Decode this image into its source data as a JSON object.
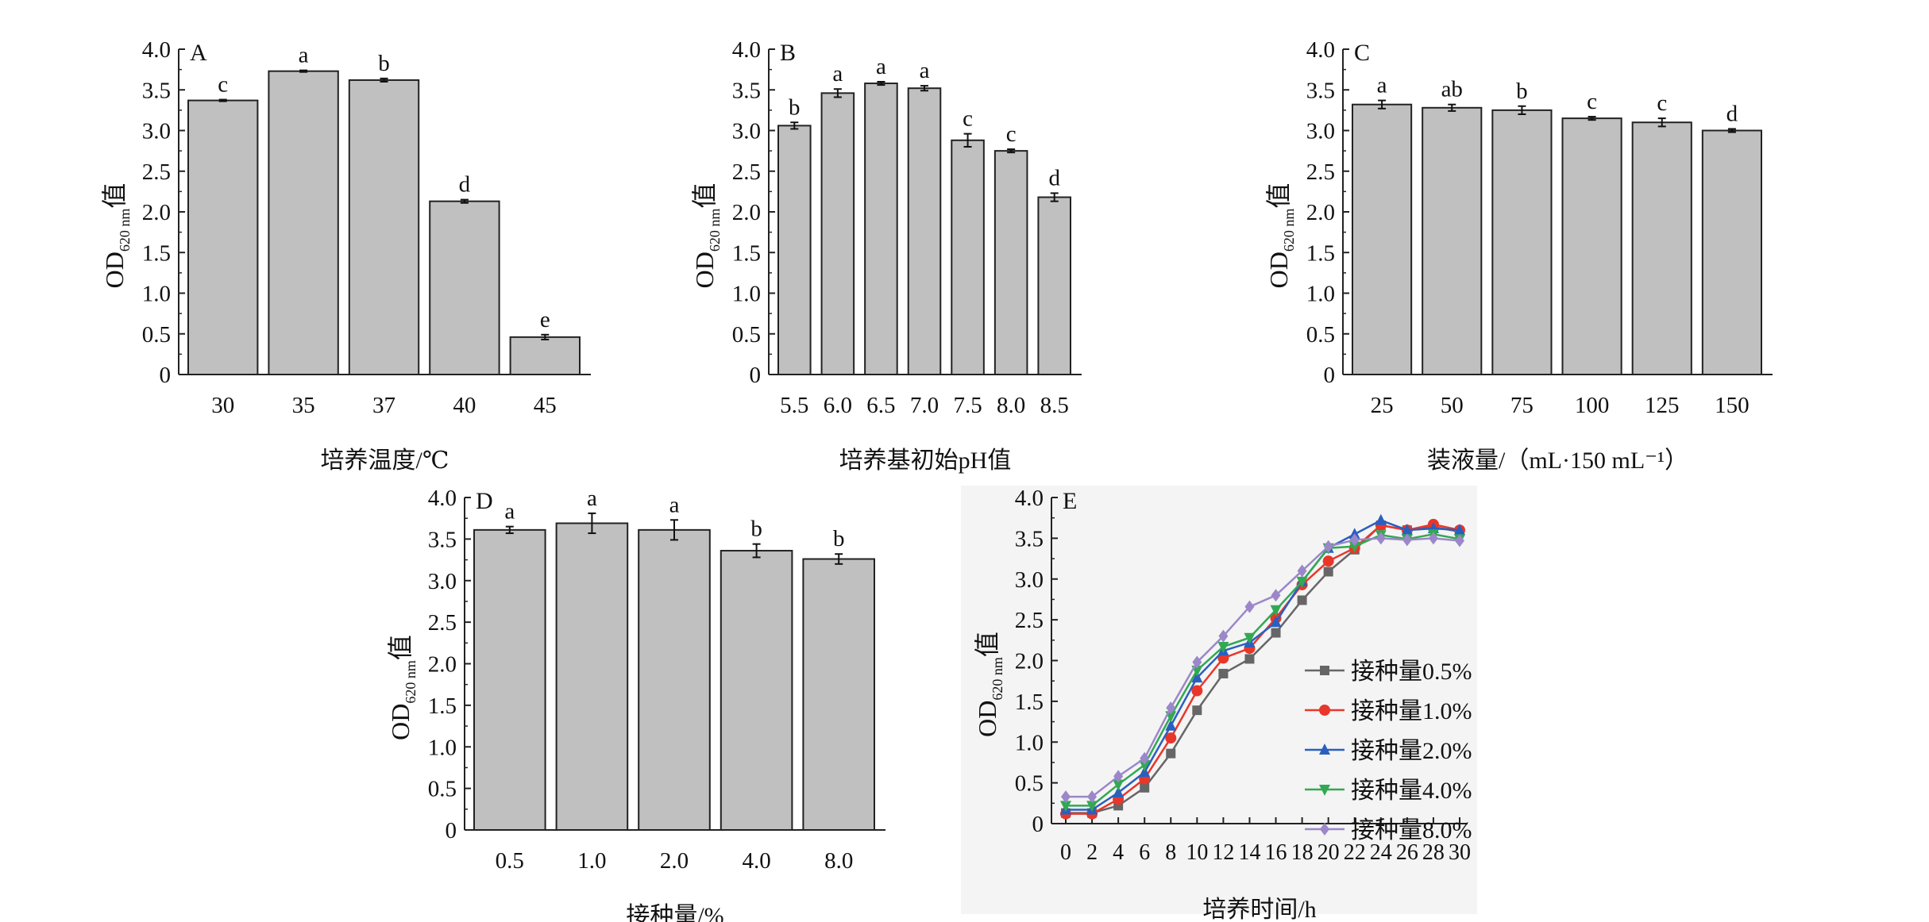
{
  "chart_data": [
    {
      "type": "bar",
      "panel": "A",
      "categories": [
        "30",
        "35",
        "37",
        "40",
        "45"
      ],
      "values": [
        3.37,
        3.73,
        3.62,
        2.13,
        0.46
      ],
      "errors": [
        0.01,
        0.01,
        0.02,
        0.02,
        0.03
      ],
      "letters": [
        "c",
        "a",
        "b",
        "d",
        "e"
      ],
      "xlabel": "培养温度/℃",
      "ylabel_main": "OD",
      "ylabel_sub": "620 nm",
      "ylabel_suffix": "值",
      "ylim": [
        0,
        4.0
      ],
      "yticks": [
        "0",
        "0.5",
        "1.0",
        "1.5",
        "2.0",
        "2.5",
        "3.0",
        "3.5",
        "4.0"
      ],
      "bar_color": "#c0c0c0"
    },
    {
      "type": "bar",
      "panel": "B",
      "categories": [
        "5.5",
        "6.0",
        "6.5",
        "7.0",
        "7.5",
        "8.0",
        "8.5"
      ],
      "values": [
        3.06,
        3.46,
        3.58,
        3.52,
        2.88,
        2.75,
        2.18
      ],
      "errors": [
        0.04,
        0.05,
        0.02,
        0.03,
        0.08,
        0.02,
        0.05
      ],
      "letters": [
        "b",
        "a",
        "a",
        "a",
        "c",
        "c",
        "d"
      ],
      "xlabel": "培养基初始pH值",
      "ylabel_main": "OD",
      "ylabel_sub": "620 nm",
      "ylabel_suffix": "值",
      "ylim": [
        0,
        4.0
      ],
      "yticks": [
        "0",
        "0.5",
        "1.0",
        "1.5",
        "2.0",
        "2.5",
        "3.0",
        "3.5",
        "4.0"
      ],
      "bar_color": "#c0c0c0"
    },
    {
      "type": "bar",
      "panel": "C",
      "categories": [
        "25",
        "50",
        "75",
        "100",
        "125",
        "150"
      ],
      "values": [
        3.32,
        3.28,
        3.25,
        3.15,
        3.1,
        3.0
      ],
      "errors": [
        0.05,
        0.04,
        0.05,
        0.02,
        0.05,
        0.02
      ],
      "letters": [
        "a",
        "ab",
        "b",
        "c",
        "c",
        "d"
      ],
      "xlabel": "装液量/（mL·150 mL⁻¹）",
      "ylabel_main": "OD",
      "ylabel_sub": "620 nm",
      "ylabel_suffix": "值",
      "ylim": [
        0,
        4.0
      ],
      "yticks": [
        "0",
        "0.5",
        "1.0",
        "1.5",
        "2.0",
        "2.5",
        "3.0",
        "3.5",
        "4.0"
      ],
      "bar_color": "#c0c0c0"
    },
    {
      "type": "bar",
      "panel": "D",
      "categories": [
        "0.5",
        "1.0",
        "2.0",
        "4.0",
        "8.0"
      ],
      "values": [
        3.61,
        3.69,
        3.61,
        3.36,
        3.26
      ],
      "errors": [
        0.04,
        0.12,
        0.12,
        0.08,
        0.06
      ],
      "letters": [
        "a",
        "a",
        "a",
        "b",
        "b"
      ],
      "xlabel": "接种量/%",
      "ylabel_main": "OD",
      "ylabel_sub": "620 nm",
      "ylabel_suffix": "值",
      "ylim": [
        0,
        4.0
      ],
      "yticks": [
        "0",
        "0.5",
        "1.0",
        "1.5",
        "2.0",
        "2.5",
        "3.0",
        "3.5",
        "4.0"
      ],
      "bar_color": "#c0c0c0"
    },
    {
      "type": "line",
      "panel": "E",
      "x": [
        0,
        2,
        4,
        6,
        8,
        10,
        12,
        14,
        16,
        18,
        20,
        22,
        24,
        26,
        28,
        30
      ],
      "xticks": [
        "0",
        "2",
        "4",
        "6",
        "8",
        "10",
        "12",
        "14",
        "16",
        "18",
        "20",
        "22",
        "24",
        "26",
        "28",
        "30"
      ],
      "xlabel": "培养时间/h",
      "ylabel_main": "OD",
      "ylabel_sub": "620 nm",
      "ylabel_suffix": "值",
      "ylim": [
        0,
        4.0
      ],
      "xlim": [
        0,
        30
      ],
      "yticks": [
        "0",
        "0.5",
        "1.0",
        "1.5",
        "2.0",
        "2.5",
        "3.0",
        "3.5",
        "4.0"
      ],
      "legend_position": "right",
      "background": "#f4f4f4",
      "series": [
        {
          "name": "接种量0.5%",
          "color": "#666666",
          "marker": "square",
          "values": [
            0.13,
            0.13,
            0.22,
            0.44,
            0.86,
            1.39,
            1.84,
            2.02,
            2.34,
            2.74,
            3.09,
            3.36,
            3.66,
            3.6,
            3.64,
            3.58
          ]
        },
        {
          "name": "接种量1.0%",
          "color": "#e8372a",
          "marker": "circle",
          "values": [
            0.12,
            0.12,
            0.3,
            0.55,
            1.05,
            1.63,
            2.03,
            2.15,
            2.52,
            2.93,
            3.22,
            3.38,
            3.66,
            3.6,
            3.67,
            3.6
          ]
        },
        {
          "name": "接种量2.0%",
          "color": "#2a5fbf",
          "marker": "triangle-up",
          "values": [
            0.17,
            0.17,
            0.38,
            0.63,
            1.2,
            1.79,
            2.12,
            2.22,
            2.47,
            2.97,
            3.38,
            3.55,
            3.72,
            3.6,
            3.62,
            3.6
          ]
        },
        {
          "name": "接种量4.0%",
          "color": "#33a853",
          "marker": "triangle-down",
          "values": [
            0.22,
            0.22,
            0.48,
            0.72,
            1.32,
            1.88,
            2.17,
            2.28,
            2.62,
            2.97,
            3.38,
            3.4,
            3.54,
            3.49,
            3.55,
            3.49
          ]
        },
        {
          "name": "接种量8.0%",
          "color": "#9b87c9",
          "marker": "diamond",
          "values": [
            0.33,
            0.33,
            0.58,
            0.8,
            1.42,
            1.98,
            2.3,
            2.66,
            2.8,
            3.1,
            3.4,
            3.48,
            3.5,
            3.48,
            3.5,
            3.47
          ]
        }
      ]
    }
  ]
}
